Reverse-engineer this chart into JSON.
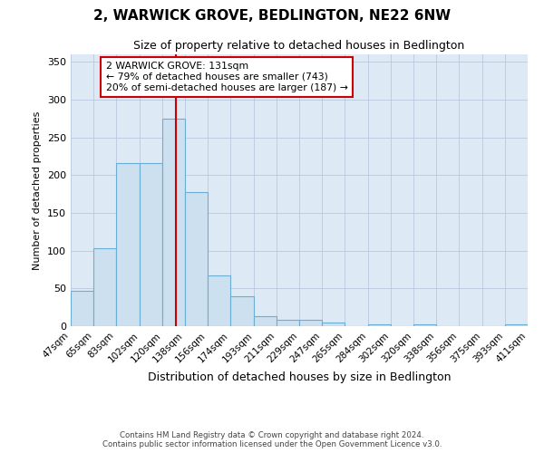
{
  "title": "2, WARWICK GROVE, BEDLINGTON, NE22 6NW",
  "subtitle": "Size of property relative to detached houses in Bedlington",
  "xlabel": "Distribution of detached houses by size in Bedlington",
  "ylabel": "Number of detached properties",
  "bar_labels": [
    "47sqm",
    "65sqm",
    "83sqm",
    "102sqm",
    "120sqm",
    "138sqm",
    "156sqm",
    "174sqm",
    "193sqm",
    "211sqm",
    "229sqm",
    "247sqm",
    "265sqm",
    "284sqm",
    "302sqm",
    "320sqm",
    "338sqm",
    "356sqm",
    "375sqm",
    "393sqm",
    "411sqm"
  ],
  "bin_edges": [
    47,
    65,
    83,
    102,
    120,
    138,
    156,
    174,
    193,
    211,
    229,
    247,
    265,
    284,
    302,
    320,
    338,
    356,
    375,
    393,
    411
  ],
  "bar_heights": [
    47,
    103,
    216,
    216,
    275,
    178,
    67,
    40,
    13,
    8,
    9,
    5,
    0,
    3,
    0,
    3,
    0,
    0,
    0,
    2
  ],
  "bar_facecolor": "#cce0f0",
  "bar_edgecolor": "#6aaed6",
  "vline_x": 131,
  "vline_color": "#cc0000",
  "annotation_title": "2 WARWICK GROVE: 131sqm",
  "annotation_line1": "← 79% of detached houses are smaller (743)",
  "annotation_line2": "20% of semi-detached houses are larger (187) →",
  "annotation_box_edgecolor": "#cc0000",
  "annotation_box_facecolor": "#ffffff",
  "ylim": [
    0,
    360
  ],
  "yticks": [
    0,
    50,
    100,
    150,
    200,
    250,
    300,
    350
  ],
  "grid_color": "#b8c8dc",
  "plot_background": "#ddeaf6",
  "footer1": "Contains HM Land Registry data © Crown copyright and database right 2024.",
  "footer2": "Contains public sector information licensed under the Open Government Licence v3.0."
}
